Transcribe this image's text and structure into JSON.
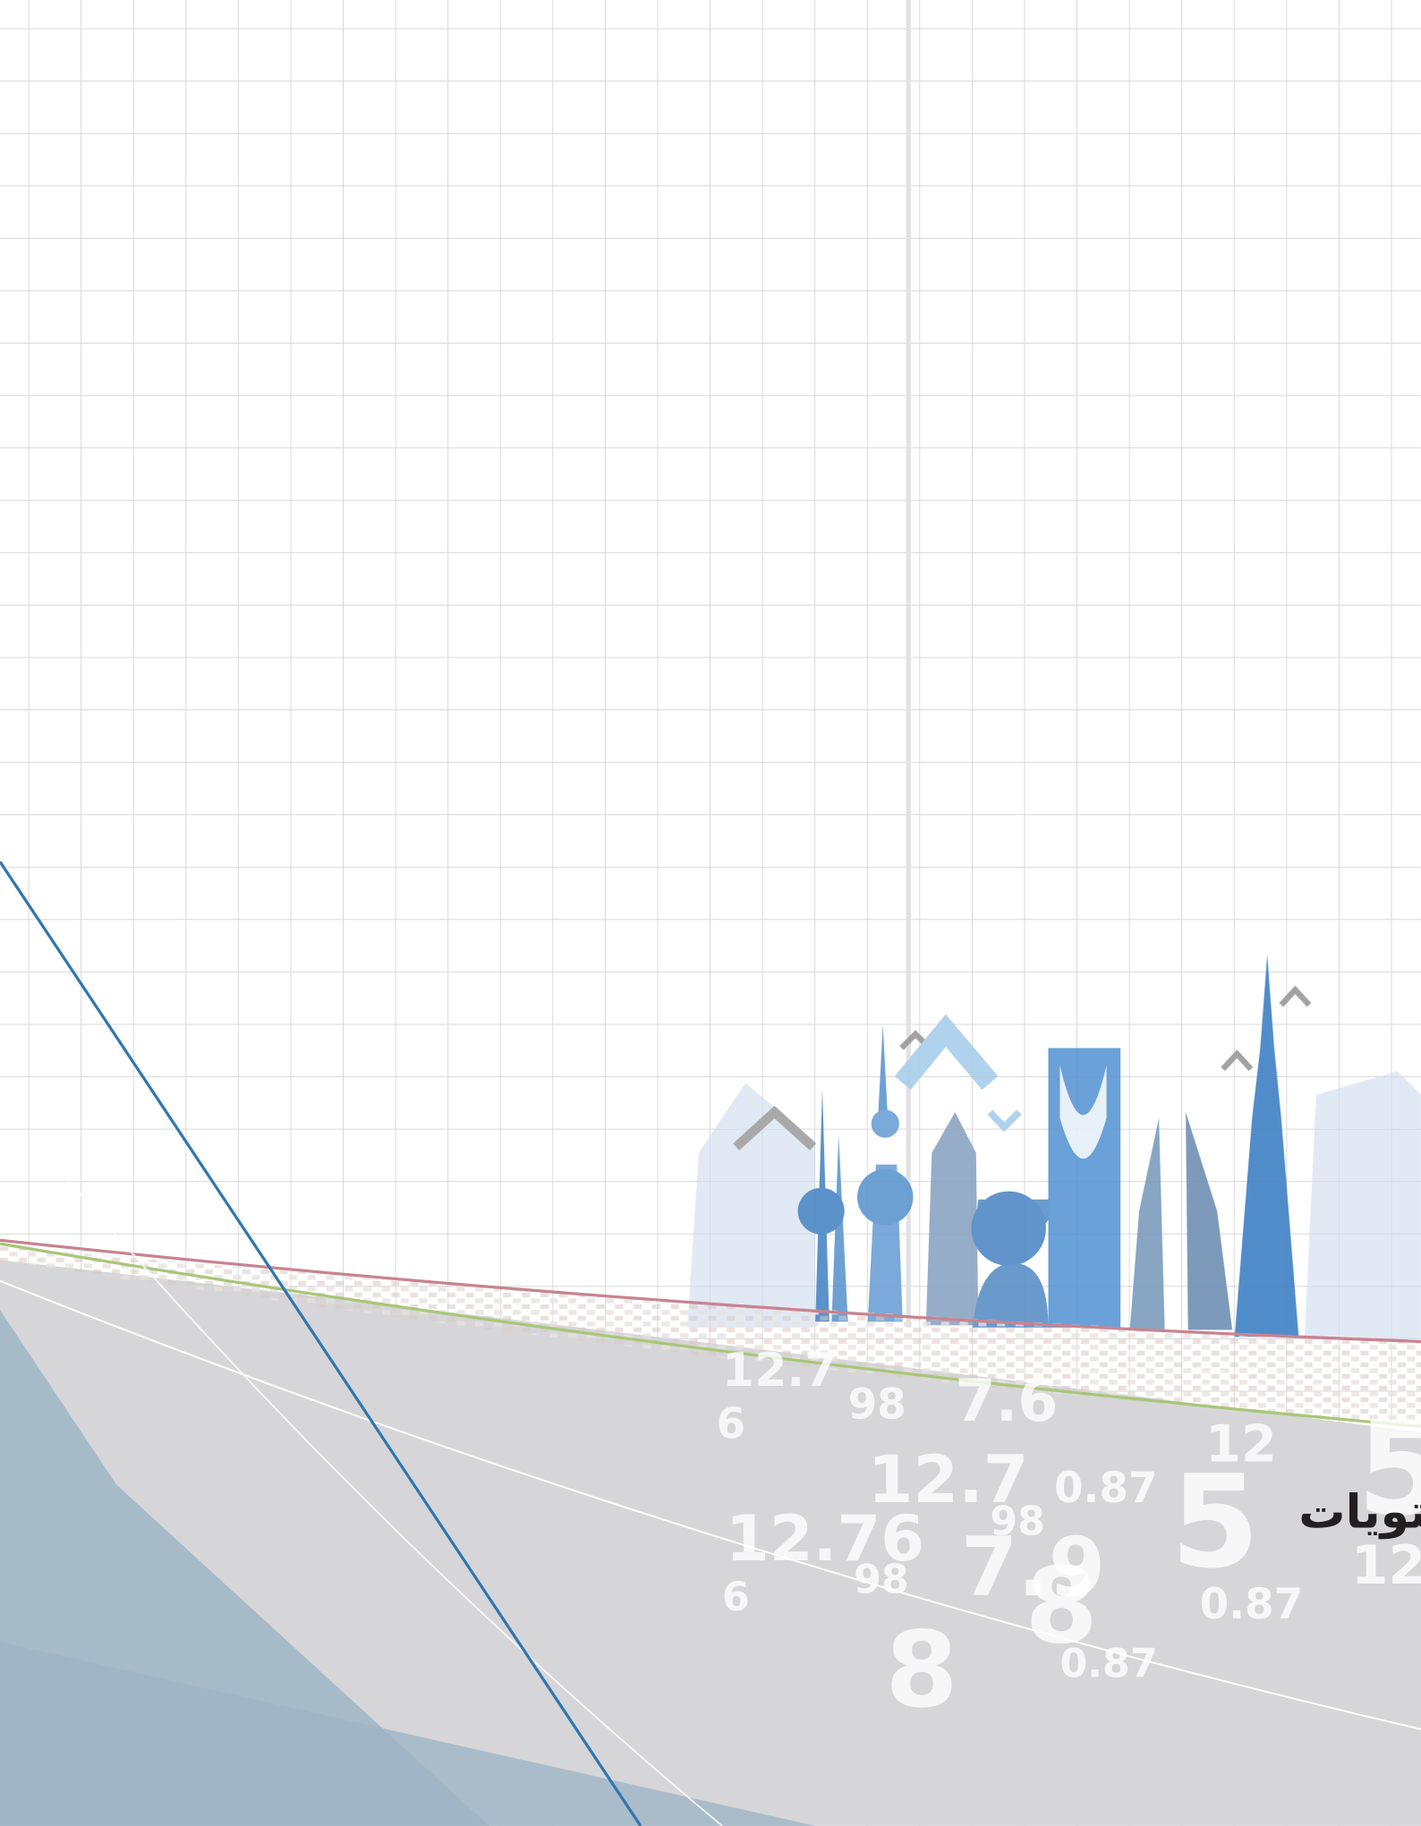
{
  "title": "المحتويات",
  "background_numbers": [
    "12.7",
    "98",
    "6",
    "7.6",
    "12",
    "5",
    "12.7",
    "0.87",
    "98",
    "5",
    "12.76",
    "7.9",
    "12",
    "98",
    "6",
    "8",
    "0.87",
    "8",
    "0.87"
  ]
}
